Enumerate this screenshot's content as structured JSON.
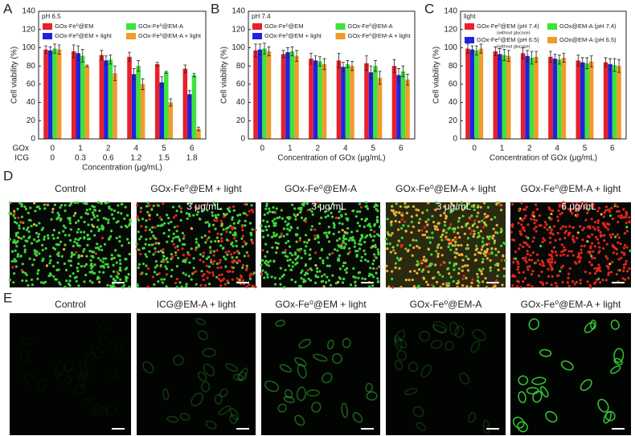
{
  "chart_data": [
    {
      "type": "bar",
      "label": "A",
      "legend_title": "pH 6.5",
      "ylabel": "Cell viability (%)",
      "xlabel": "Concentration  (μg/mL)",
      "categories_name": "GOx",
      "categories": [
        "0",
        "1",
        "2",
        "4",
        "5",
        "6"
      ],
      "categories2_name": "ICG",
      "categories2": [
        "0",
        "0.3",
        "0.6",
        "1.2",
        "1.5",
        "1.8"
      ],
      "ylim": [
        0,
        140
      ],
      "yticks": [
        0,
        20,
        40,
        60,
        80,
        100,
        120,
        140
      ],
      "series": [
        {
          "name": "GOx-Fe⁰@EM",
          "color": "#e8202a",
          "values": [
            98,
            96,
            92,
            90,
            82,
            77
          ],
          "errors": [
            4,
            7,
            5,
            5,
            2,
            4
          ]
        },
        {
          "name": "GOx-Fe⁰@EM + light",
          "color": "#1f23e0",
          "values": [
            97,
            94,
            86,
            71,
            62,
            49
          ],
          "errors": [
            4,
            8,
            5,
            6,
            6,
            4
          ]
        },
        {
          "name": "GOx-Fe⁰@EM-A",
          "color": "#3ee33b",
          "values": [
            99,
            91,
            87,
            80,
            73,
            70
          ],
          "errors": [
            5,
            7,
            5,
            6,
            1,
            2
          ]
        },
        {
          "name": "GOx-Fe⁰@EM-A + light",
          "color": "#f39a2a",
          "values": [
            98,
            80,
            72,
            60,
            40,
            11
          ],
          "errors": [
            5,
            1,
            8,
            6,
            4,
            2
          ]
        }
      ]
    },
    {
      "type": "bar",
      "label": "B",
      "legend_title": "pH 7.4",
      "ylabel": "Cell viability (%)",
      "xlabel": "Concentration of GOx (μg/mL)",
      "categories": [
        "0",
        "1",
        "2",
        "4",
        "5",
        "6"
      ],
      "ylim": [
        0,
        140
      ],
      "yticks": [
        0,
        20,
        40,
        60,
        80,
        100,
        120,
        140
      ],
      "series": [
        {
          "name": "GOx-Fe⁰@EM",
          "color": "#e8202a",
          "values": [
            97,
            93,
            88,
            86,
            83,
            80
          ],
          "errors": [
            7,
            4,
            6,
            8,
            8,
            7
          ]
        },
        {
          "name": "GOx-Fe⁰@EM + light",
          "color": "#1f23e0",
          "values": [
            98,
            95,
            86,
            79,
            73,
            70
          ],
          "errors": [
            6,
            5,
            5,
            5,
            7,
            7
          ]
        },
        {
          "name": "GOx-Fe⁰@EM-A",
          "color": "#3ee33b",
          "values": [
            99,
            96,
            85,
            82,
            80,
            74
          ],
          "errors": [
            6,
            5,
            5,
            4,
            6,
            6
          ]
        },
        {
          "name": "GOx-Fe⁰@EM-A + light",
          "color": "#f39a2a",
          "values": [
            96,
            91,
            82,
            80,
            67,
            65
          ],
          "errors": [
            5,
            6,
            6,
            5,
            7,
            6
          ]
        }
      ]
    },
    {
      "type": "bar",
      "label": "C",
      "legend_title": "light",
      "ylabel": "Cell viability (%)",
      "xlabel": "Concentration of GOx (μg/mL)",
      "categories": [
        "0",
        "1",
        "2",
        "4",
        "5",
        "6"
      ],
      "ylim": [
        0,
        140
      ],
      "yticks": [
        0,
        20,
        40,
        60,
        80,
        100,
        120,
        140
      ],
      "series": [
        {
          "name": "GOx-Fe⁰@EM (pH 7.4)",
          "note": "(without glucose)",
          "color": "#e8202a",
          "values": [
            99,
            96,
            94,
            90,
            86,
            84
          ],
          "errors": [
            5,
            5,
            6,
            6,
            6,
            5
          ]
        },
        {
          "name": "GOx-Fe⁰@EM (pH 6.5)",
          "note": "(without glucose)",
          "color": "#1f23e0",
          "values": [
            98,
            93,
            91,
            88,
            84,
            82
          ],
          "errors": [
            4,
            6,
            6,
            5,
            5,
            6
          ]
        },
        {
          "name": "GOx@EM-A (pH 7.4)",
          "color": "#3ee33b",
          "values": [
            97,
            92,
            89,
            87,
            83,
            81
          ],
          "errors": [
            5,
            6,
            7,
            5,
            6,
            7
          ]
        },
        {
          "name": "GOx@EM-A (pH 6.5)",
          "color": "#f39a2a",
          "values": [
            99,
            91,
            90,
            89,
            85,
            80
          ],
          "errors": [
            5,
            6,
            6,
            5,
            6,
            7
          ]
        }
      ]
    }
  ],
  "panel_d": {
    "label": "D",
    "images": [
      {
        "title": "Control"
      },
      {
        "title": "GOx-Fe⁰@EM + light",
        "caption": "3 μg/mL"
      },
      {
        "title": "GOx-Fe⁰@EM-A",
        "caption": "3  μg/mL"
      },
      {
        "title": "GOx-Fe⁰@EM-A + light",
        "caption": "3  μg/mL"
      },
      {
        "title": "GOx-Fe⁰@EM-A + light",
        "caption": "6  μg/mL"
      }
    ]
  },
  "panel_e": {
    "label": "E",
    "images": [
      {
        "title": "Control"
      },
      {
        "title": "ICG@EM-A + light"
      },
      {
        "title": "GOx-Fe⁰@EM + light"
      },
      {
        "title": "GOx-Fe⁰@EM-A"
      },
      {
        "title": "GOx-Fe⁰@EM-A + light"
      }
    ]
  }
}
